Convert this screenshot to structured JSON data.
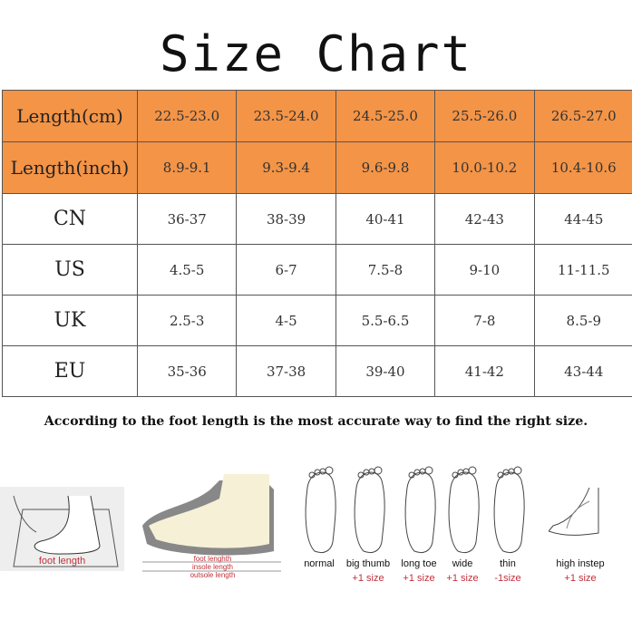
{
  "title": "Size Chart",
  "table": {
    "rows": [
      {
        "label": "Length(cm)",
        "values": [
          "22.5-23.0",
          "23.5-24.0",
          "24.5-25.0",
          "25.5-26.0",
          "26.5-27.0"
        ],
        "highlight": true
      },
      {
        "label": "Length(inch)",
        "values": [
          "8.9-9.1",
          "9.3-9.4",
          "9.6-9.8",
          "10.0-10.2",
          "10.4-10.6"
        ],
        "highlight": true
      },
      {
        "label": "CN",
        "values": [
          "36-37",
          "38-39",
          "40-41",
          "42-43",
          "44-45"
        ]
      },
      {
        "label": "US",
        "values": [
          "4.5-5",
          "6-7",
          "7.5-8",
          "9-10",
          "11-11.5"
        ]
      },
      {
        "label": "UK",
        "values": [
          "2.5-3",
          "4-5",
          "5.5-6.5",
          "7-8",
          "8.5-9"
        ]
      },
      {
        "label": "EU",
        "values": [
          "35-36",
          "37-38",
          "39-40",
          "41-42",
          "43-44"
        ]
      }
    ]
  },
  "note": "According to the foot length is the most  accurate way to find the right size.",
  "measure": {
    "foot_length": "foot length"
  },
  "shoe": {
    "foot_length": "foot lenghth",
    "insole_length": "insole length",
    "outsole_length": "outsole length"
  },
  "foot_types": [
    {
      "name": "normal",
      "adjust": ""
    },
    {
      "name": "big thumb",
      "adjust": "+1 size"
    },
    {
      "name": "long toe",
      "adjust": "+1 size"
    },
    {
      "name": "wide",
      "adjust": "+1 size"
    },
    {
      "name": "thin",
      "adjust": "-1size"
    },
    {
      "name": "high instep",
      "adjust": "+1 size"
    }
  ],
  "colors": {
    "header_bg": "#F39447",
    "adjust_text": "#c0303a"
  }
}
